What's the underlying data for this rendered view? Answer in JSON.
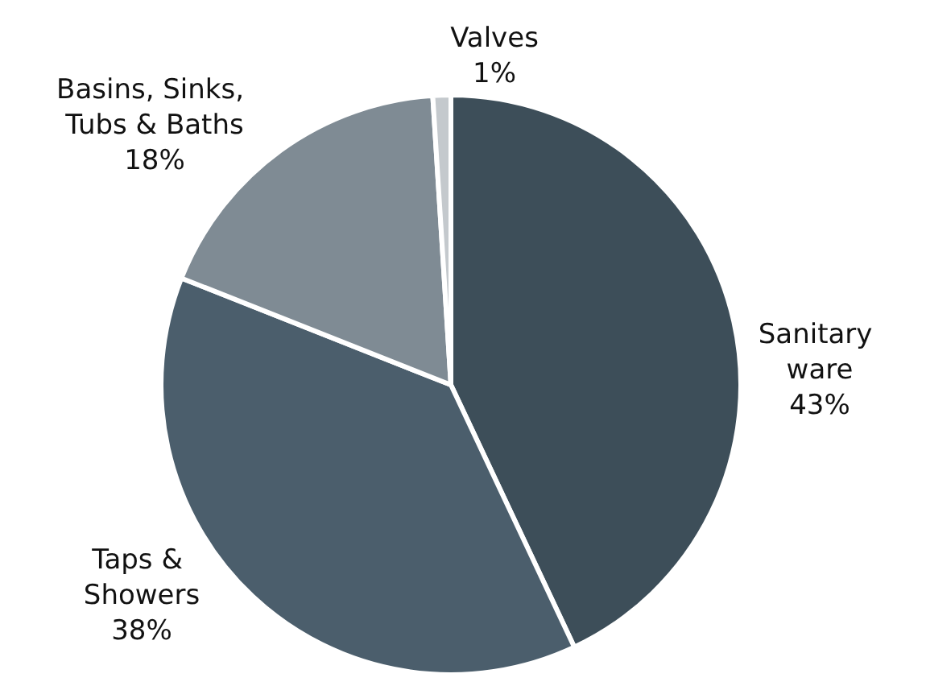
{
  "chart_data": {
    "type": "pie",
    "categories": [
      "Sanitary ware",
      "Taps & Showers",
      "Basins, Sinks, Tubs & Baths",
      "Valves"
    ],
    "values": [
      43,
      38,
      18,
      1
    ],
    "colors": [
      "#3d4e59",
      "#4b5e6c",
      "#7f8b94",
      "#c4c9cd"
    ],
    "value_labels": [
      "43%",
      "38%",
      "18%",
      "1%"
    ],
    "legend": false
  }
}
